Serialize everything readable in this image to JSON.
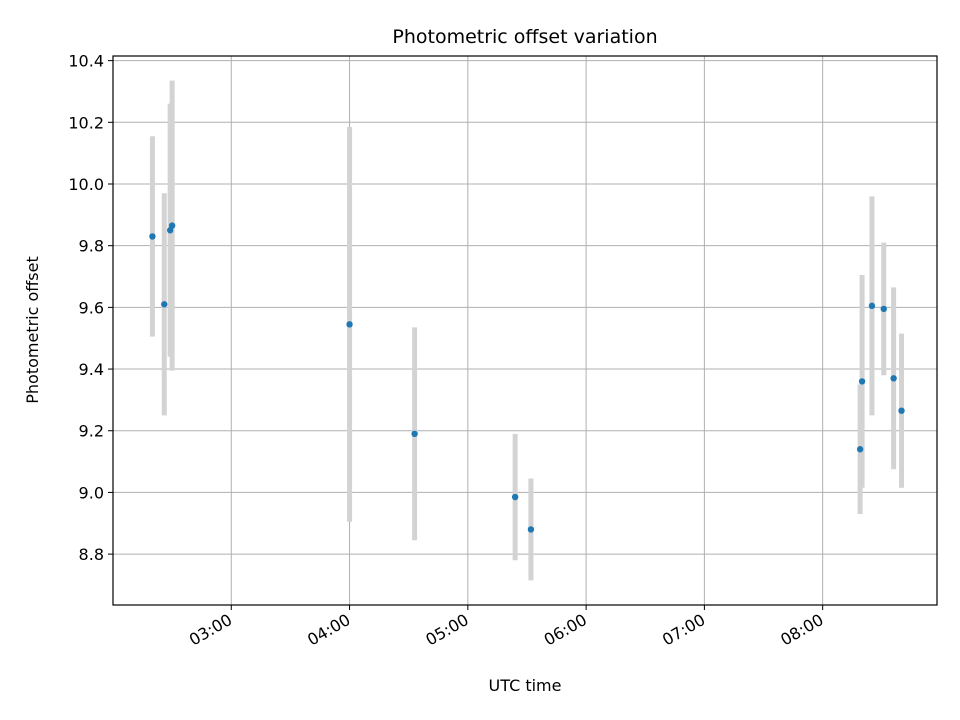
{
  "chart_data": {
    "type": "scatter",
    "title": "Photometric offset variation",
    "xlabel": "UTC time",
    "ylabel": "Photometric offset",
    "x_unit": "hours UTC",
    "xlim": [
      "02:00",
      "08:58"
    ],
    "ylim": [
      8.635,
      10.415
    ],
    "x_ticks": [
      "03:00",
      "04:00",
      "05:00",
      "06:00",
      "07:00",
      "08:00"
    ],
    "y_ticks": [
      "8.8",
      "9.0",
      "9.2",
      "9.4",
      "9.6",
      "9.8",
      "10.0",
      "10.2",
      "10.4"
    ],
    "grid": true,
    "colors": {
      "point": "#1f77b4",
      "errorbar": "#d3d3d3",
      "grid": "#b0b0b0"
    },
    "points": [
      {
        "x": "02:20",
        "y": 9.83,
        "y_err": 0.325
      },
      {
        "x": "02:26",
        "y": 9.61,
        "y_err": 0.36
      },
      {
        "x": "02:29",
        "y": 9.85,
        "y_err": 0.41
      },
      {
        "x": "02:30",
        "y": 9.865,
        "y_err": 0.47
      },
      {
        "x": "04:00",
        "y": 9.545,
        "y_err": 0.64
      },
      {
        "x": "04:33",
        "y": 9.19,
        "y_err": 0.345
      },
      {
        "x": "05:24",
        "y": 8.985,
        "y_err": 0.205
      },
      {
        "x": "05:32",
        "y": 8.88,
        "y_err": 0.165
      },
      {
        "x": "08:19",
        "y": 9.14,
        "y_err": 0.21
      },
      {
        "x": "08:20",
        "y": 9.36,
        "y_err": 0.345
      },
      {
        "x": "08:25",
        "y": 9.605,
        "y_err": 0.355
      },
      {
        "x": "08:31",
        "y": 9.595,
        "y_err": 0.215
      },
      {
        "x": "08:36",
        "y": 9.37,
        "y_err": 0.295
      },
      {
        "x": "08:40",
        "y": 9.265,
        "y_err": 0.25
      }
    ]
  }
}
